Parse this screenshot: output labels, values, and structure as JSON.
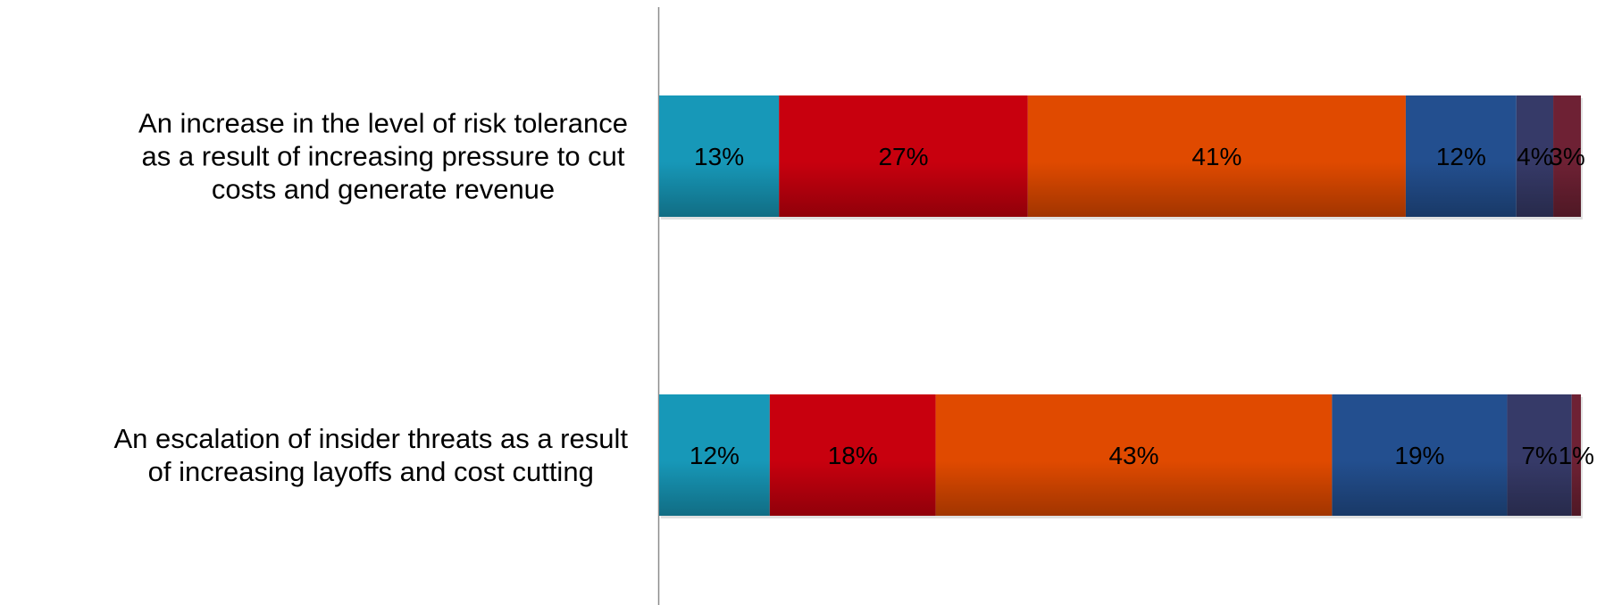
{
  "chart_data": {
    "type": "bar",
    "orientation": "horizontal",
    "stacked": true,
    "percent_stacked": true,
    "title": "",
    "xlabel": "",
    "ylabel": "",
    "legend": "none",
    "grid": false,
    "xlim": [
      0,
      100
    ],
    "categories": [
      {
        "lines": [
          "An increase in the level of risk tolerance",
          "as a result of increasing pressure to cut",
          "costs and generate revenue"
        ]
      },
      {
        "lines": [
          "An escalation of insider threats as a result",
          "of increasing layoffs and cost cutting"
        ]
      }
    ],
    "series": [
      {
        "color": "#1798B8",
        "values": [
          13,
          12
        ],
        "labels": [
          "13%",
          "12%"
        ]
      },
      {
        "color": "#C8000E",
        "values": [
          27,
          18
        ],
        "labels": [
          "27%",
          "18%"
        ]
      },
      {
        "color": "#E04A00",
        "values": [
          41,
          43
        ],
        "labels": [
          "41%",
          "43%"
        ]
      },
      {
        "color": "#234F8F",
        "values": [
          12,
          19
        ],
        "labels": [
          "12%",
          "19%"
        ]
      },
      {
        "color": "#363A68",
        "values": [
          4,
          7
        ],
        "labels": [
          "4%",
          "7%"
        ]
      },
      {
        "color": "#6E2134",
        "values": [
          3,
          1
        ],
        "labels": [
          "3%",
          "1%"
        ]
      }
    ]
  }
}
